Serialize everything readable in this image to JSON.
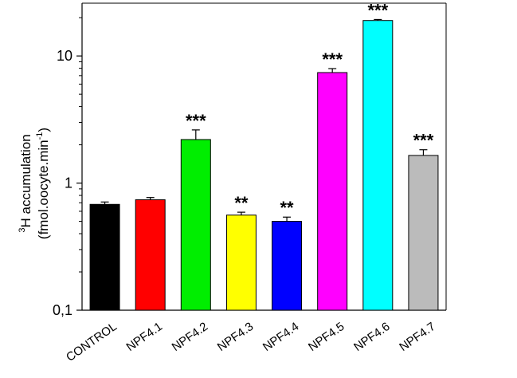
{
  "chart_data": {
    "type": "bar",
    "title": "",
    "ylabel_line1": "3H accumulation",
    "ylabel_line1_sup": "3",
    "ylabel_line1_main": "H accumulation",
    "ylabel_line2_pre": "(fmol.oocyte.min",
    "ylabel_line2_sup": "-1",
    "ylabel_line2_post": ")",
    "xlabel": "",
    "yscale": "log",
    "ylim": [
      0.1,
      26
    ],
    "yticks": [
      {
        "value": 0.1,
        "label": "0,1"
      },
      {
        "value": 1,
        "label": "1"
      },
      {
        "value": 10,
        "label": "10"
      }
    ],
    "categories": [
      "CONTROL",
      "NPF4.1",
      "NPF4.2",
      "NPF4.3",
      "NPF4.4",
      "NPF4.5",
      "NPF4.6",
      "NPF4.7"
    ],
    "values": [
      0.68,
      0.74,
      2.2,
      0.56,
      0.5,
      7.4,
      19.0,
      1.65
    ],
    "errors": [
      0.03,
      0.03,
      0.42,
      0.03,
      0.04,
      0.55,
      0.35,
      0.18
    ],
    "colors": [
      "#000000",
      "#ff0000",
      "#00ee00",
      "#ffff00",
      "#0000ff",
      "#ff00ff",
      "#00ffff",
      "#bbbbbb"
    ],
    "significance": [
      "",
      "",
      "***",
      "**",
      "**",
      "***",
      "***",
      "***"
    ],
    "grid": false,
    "legend": "none"
  }
}
